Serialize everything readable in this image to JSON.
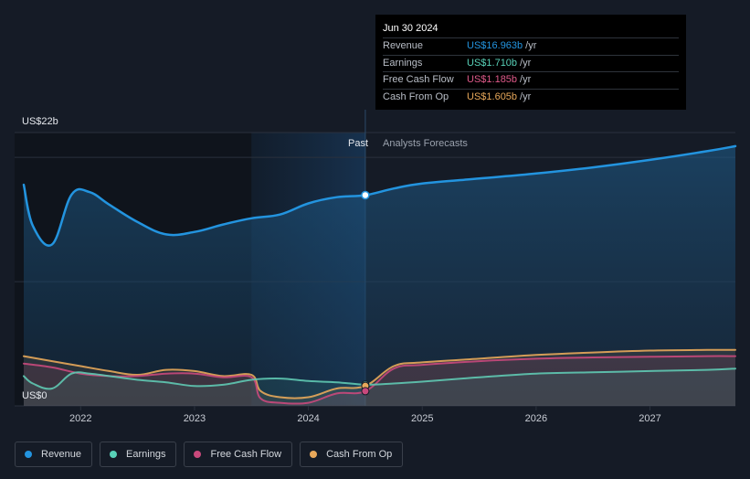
{
  "chart_data": {
    "type": "area",
    "y_axis_top_label": "US$22b",
    "y_axis_bottom_label": "US$0",
    "ylim": [
      0,
      22
    ],
    "xlim": [
      2021.42,
      2027.75
    ],
    "x_ticks": [
      2022,
      2023,
      2024,
      2025,
      2026,
      2027
    ],
    "x_tick_labels": [
      "2022",
      "2023",
      "2024",
      "2025",
      "2026",
      "2027"
    ],
    "past_label": "Past",
    "forecast_label": "Analysts Forecasts",
    "divider_x": 2024.5,
    "highlight_range": [
      2023.5,
      2024.5
    ],
    "colors": {
      "revenue": "#2394df",
      "earnings": "#58d1b8",
      "fcf": "#c9497c",
      "cfo": "#e8a85a",
      "background": "#151b26",
      "past_panel": "#0f141c"
    },
    "series": [
      {
        "key": "revenue",
        "name": "Revenue",
        "x": [
          2021.5,
          2021.58,
          2021.75,
          2021.92,
          2022.08,
          2022.25,
          2022.5,
          2022.75,
          2023.0,
          2023.25,
          2023.5,
          2023.75,
          2024.0,
          2024.25,
          2024.5,
          2024.75,
          2025.0,
          2025.5,
          2026.0,
          2026.5,
          2027.0,
          2027.5,
          2027.75
        ],
        "values": [
          17.8,
          14.5,
          13.0,
          17.0,
          17.2,
          16.2,
          14.8,
          13.8,
          14.0,
          14.6,
          15.1,
          15.4,
          16.3,
          16.8,
          16.963,
          17.5,
          17.9,
          18.3,
          18.7,
          19.2,
          19.8,
          20.5,
          20.9
        ]
      },
      {
        "key": "earnings",
        "name": "Earnings",
        "x": [
          2021.5,
          2021.58,
          2021.75,
          2021.92,
          2022.08,
          2022.25,
          2022.5,
          2022.75,
          2023.0,
          2023.25,
          2023.5,
          2023.75,
          2024.0,
          2024.25,
          2024.5,
          2024.75,
          2025.0,
          2025.5,
          2026.0,
          2026.5,
          2027.0,
          2027.5,
          2027.75
        ],
        "values": [
          2.4,
          1.8,
          1.4,
          2.6,
          2.6,
          2.4,
          2.1,
          1.9,
          1.6,
          1.7,
          2.1,
          2.2,
          2.0,
          1.9,
          1.71,
          1.8,
          1.95,
          2.3,
          2.6,
          2.7,
          2.8,
          2.9,
          3.0
        ]
      },
      {
        "key": "fcf",
        "name": "Free Cash Flow",
        "x": [
          2021.5,
          2021.75,
          2022.0,
          2022.25,
          2022.5,
          2022.75,
          2023.0,
          2023.25,
          2023.5,
          2023.58,
          2023.75,
          2024.0,
          2024.25,
          2024.5,
          2024.75,
          2025.0,
          2025.5,
          2026.0,
          2026.5,
          2027.0,
          2027.5,
          2027.75
        ],
        "values": [
          3.4,
          3.1,
          2.6,
          2.4,
          2.4,
          2.6,
          2.6,
          2.3,
          2.3,
          0.6,
          0.25,
          0.25,
          1.0,
          1.185,
          3.0,
          3.3,
          3.6,
          3.8,
          3.9,
          3.95,
          4.0,
          4.0
        ]
      },
      {
        "key": "cfo",
        "name": "Cash From Op",
        "x": [
          2021.5,
          2021.75,
          2022.0,
          2022.25,
          2022.5,
          2022.75,
          2023.0,
          2023.25,
          2023.5,
          2023.58,
          2023.75,
          2024.0,
          2024.25,
          2024.5,
          2024.75,
          2025.0,
          2025.5,
          2026.0,
          2026.5,
          2027.0,
          2027.5,
          2027.75
        ],
        "values": [
          4.0,
          3.6,
          3.2,
          2.8,
          2.5,
          2.9,
          2.8,
          2.4,
          2.5,
          1.2,
          0.7,
          0.7,
          1.4,
          1.605,
          3.2,
          3.5,
          3.8,
          4.1,
          4.3,
          4.45,
          4.5,
          4.5
        ]
      }
    ],
    "tooltip": {
      "date": "Jun 30 2024",
      "rows": [
        {
          "label": "Revenue",
          "value": "US$16.963b",
          "unit": "/yr",
          "color": "#2394df"
        },
        {
          "label": "Earnings",
          "value": "US$1.710b",
          "unit": "/yr",
          "color": "#58d1b8"
        },
        {
          "label": "Free Cash Flow",
          "value": "US$1.185b",
          "unit": "/yr",
          "color": "#e05a8a"
        },
        {
          "label": "Cash From Op",
          "value": "US$1.605b",
          "unit": "/yr",
          "color": "#e8a85a"
        }
      ]
    }
  },
  "legend": [
    {
      "label": "Revenue",
      "color": "#2394df"
    },
    {
      "label": "Earnings",
      "color": "#58d1b8"
    },
    {
      "label": "Free Cash Flow",
      "color": "#c9497c"
    },
    {
      "label": "Cash From Op",
      "color": "#e8a85a"
    }
  ]
}
